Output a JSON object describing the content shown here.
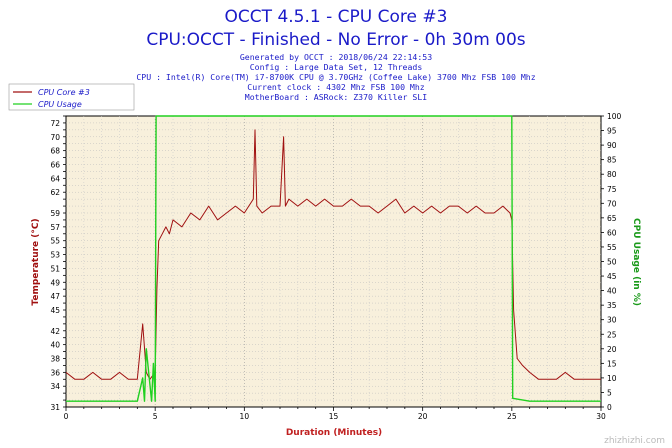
{
  "header": {
    "title": "OCCT 4.5.1 - CPU Core #3",
    "subtitle": "CPU:OCCT - Finished - No Error - 0h 30m 00s",
    "info_lines": [
      "Generated by OCCT : 2018/06/24 22:14:53",
      "Config : Large Data Set, 12 Threads",
      "CPU : Intel(R) Core(TM) i7-8700K CPU @ 3.70GHz (Coffee Lake) 3700 Mhz FSB 100 Mhz",
      "Current clock : 4302 Mhz FSB 100 Mhz",
      "MotherBoard : ASRock: Z370 Killer SLI"
    ]
  },
  "watermark": "zhizhizhi.com",
  "chart_data": {
    "type": "line",
    "xlabel": "Duration (Minutes)",
    "ylabel_left": "Temperature (°C)",
    "ylabel_right": "CPU Usage (in %)",
    "xlim": [
      0,
      30
    ],
    "ylim_left": [
      31,
      73
    ],
    "ylim_right": [
      0,
      100
    ],
    "x_ticks": [
      0,
      5,
      10,
      15,
      20,
      25,
      30
    ],
    "y_left_ticks": [
      31,
      32,
      33,
      34,
      35,
      36,
      37,
      38,
      39,
      40,
      41,
      42,
      43,
      44,
      45,
      46,
      47,
      48,
      49,
      50,
      51,
      52,
      53,
      54,
      55,
      56,
      57,
      58,
      59,
      60,
      61,
      62,
      63,
      64,
      65,
      66,
      67,
      68,
      69,
      70,
      71,
      72,
      73
    ],
    "y_left_tick_labels": [
      31,
      34,
      36,
      38,
      40,
      42,
      45,
      47,
      49,
      51,
      53,
      55,
      57,
      59,
      62,
      64,
      66,
      68,
      70,
      72
    ],
    "y_right_ticks": [
      0,
      5,
      10,
      15,
      20,
      25,
      30,
      35,
      40,
      45,
      50,
      55,
      60,
      65,
      70,
      75,
      80,
      85,
      90,
      95,
      100
    ],
    "grid": true,
    "legend_position": "top-left",
    "series": [
      {
        "name": "CPU Core #3",
        "axis": "left",
        "color": "#a01010",
        "x": [
          0,
          0.5,
          1,
          1.5,
          2,
          2.5,
          3,
          3.5,
          4,
          4.3,
          4.5,
          4.7,
          5,
          5.1,
          5.2,
          5.4,
          5.6,
          5.8,
          6,
          6.5,
          7,
          7.5,
          8,
          8.5,
          9,
          9.5,
          10,
          10.5,
          10.6,
          10.7,
          11,
          11.5,
          12,
          12.2,
          12.3,
          12.5,
          13,
          13.5,
          14,
          14.5,
          15,
          15.5,
          16,
          16.5,
          17,
          17.5,
          18,
          18.5,
          19,
          19.5,
          20,
          20.5,
          21,
          21.5,
          22,
          22.5,
          23,
          23.5,
          24,
          24.5,
          24.9,
          25,
          25.1,
          25.3,
          25.6,
          26,
          26.5,
          27,
          27.5,
          28,
          28.5,
          29,
          29.5,
          30
        ],
        "values": [
          36,
          35,
          35,
          36,
          35,
          35,
          36,
          35,
          35,
          43,
          36,
          35,
          36,
          48,
          55,
          56,
          57,
          56,
          58,
          57,
          59,
          58,
          60,
          58,
          59,
          60,
          59,
          61,
          71,
          60,
          59,
          60,
          60,
          70,
          60,
          61,
          60,
          61,
          60,
          61,
          60,
          60,
          61,
          60,
          60,
          59,
          60,
          61,
          59,
          60,
          59,
          60,
          59,
          60,
          60,
          59,
          60,
          59,
          59,
          60,
          59,
          58,
          45,
          38,
          37,
          36,
          35,
          35,
          35,
          36,
          35,
          35,
          35,
          35
        ]
      },
      {
        "name": "CPU Usage",
        "axis": "right",
        "color": "#20d020",
        "x": [
          0,
          1,
          2,
          3,
          4,
          4.3,
          4.4,
          4.5,
          4.8,
          4.9,
          5.0,
          5.05,
          10,
          15,
          20,
          24.95,
          25.0,
          25.05,
          26,
          27,
          28,
          29,
          30
        ],
        "values": [
          2,
          2,
          2,
          2,
          2,
          10,
          2,
          20,
          2,
          15,
          2,
          100,
          100,
          100,
          100,
          100,
          100,
          3,
          2,
          2,
          2,
          2,
          2
        ]
      }
    ]
  }
}
